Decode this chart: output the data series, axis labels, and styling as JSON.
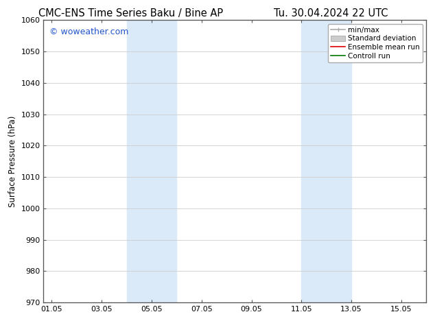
{
  "title_left": "CMC-ENS Time Series Baku / Bine AP",
  "title_right": "Tu. 30.04.2024 22 UTC",
  "ylabel": "Surface Pressure (hPa)",
  "ylim": [
    970,
    1060
  ],
  "yticks": [
    970,
    980,
    990,
    1000,
    1010,
    1020,
    1030,
    1040,
    1050,
    1060
  ],
  "xlim_start": 0.0,
  "xlim_end": 15.33,
  "xtick_labels": [
    "01.05",
    "03.05",
    "05.05",
    "07.05",
    "09.05",
    "11.05",
    "13.05",
    "15.05"
  ],
  "xtick_positions": [
    0.33,
    2.33,
    4.33,
    6.33,
    8.33,
    10.33,
    12.33,
    14.33
  ],
  "shaded_regions": [
    {
      "x_start": 3.33,
      "x_end": 5.33,
      "color": "#daeaf8"
    },
    {
      "x_start": 10.33,
      "x_end": 12.33,
      "color": "#daeaf8"
    }
  ],
  "legend_entries": [
    {
      "label": "min/max",
      "color": "#aaaaaa",
      "lw": 1.2,
      "type": "minmax"
    },
    {
      "label": "Standard deviation",
      "color": "#cccccc",
      "lw": 5,
      "type": "stddev"
    },
    {
      "label": "Ensemble mean run",
      "color": "#dd0000",
      "lw": 1.2,
      "type": "line"
    },
    {
      "label": "Controll run",
      "color": "#007700",
      "lw": 1.2,
      "type": "line"
    }
  ],
  "watermark": "© woweather.com",
  "watermark_color": "#2255cc",
  "bg_color": "#ffffff",
  "plot_bg_color": "#ffffff",
  "grid_color": "#cccccc",
  "title_fontsize": 10.5,
  "ylabel_fontsize": 8.5,
  "tick_fontsize": 8,
  "legend_fontsize": 7.5,
  "watermark_fontsize": 9
}
